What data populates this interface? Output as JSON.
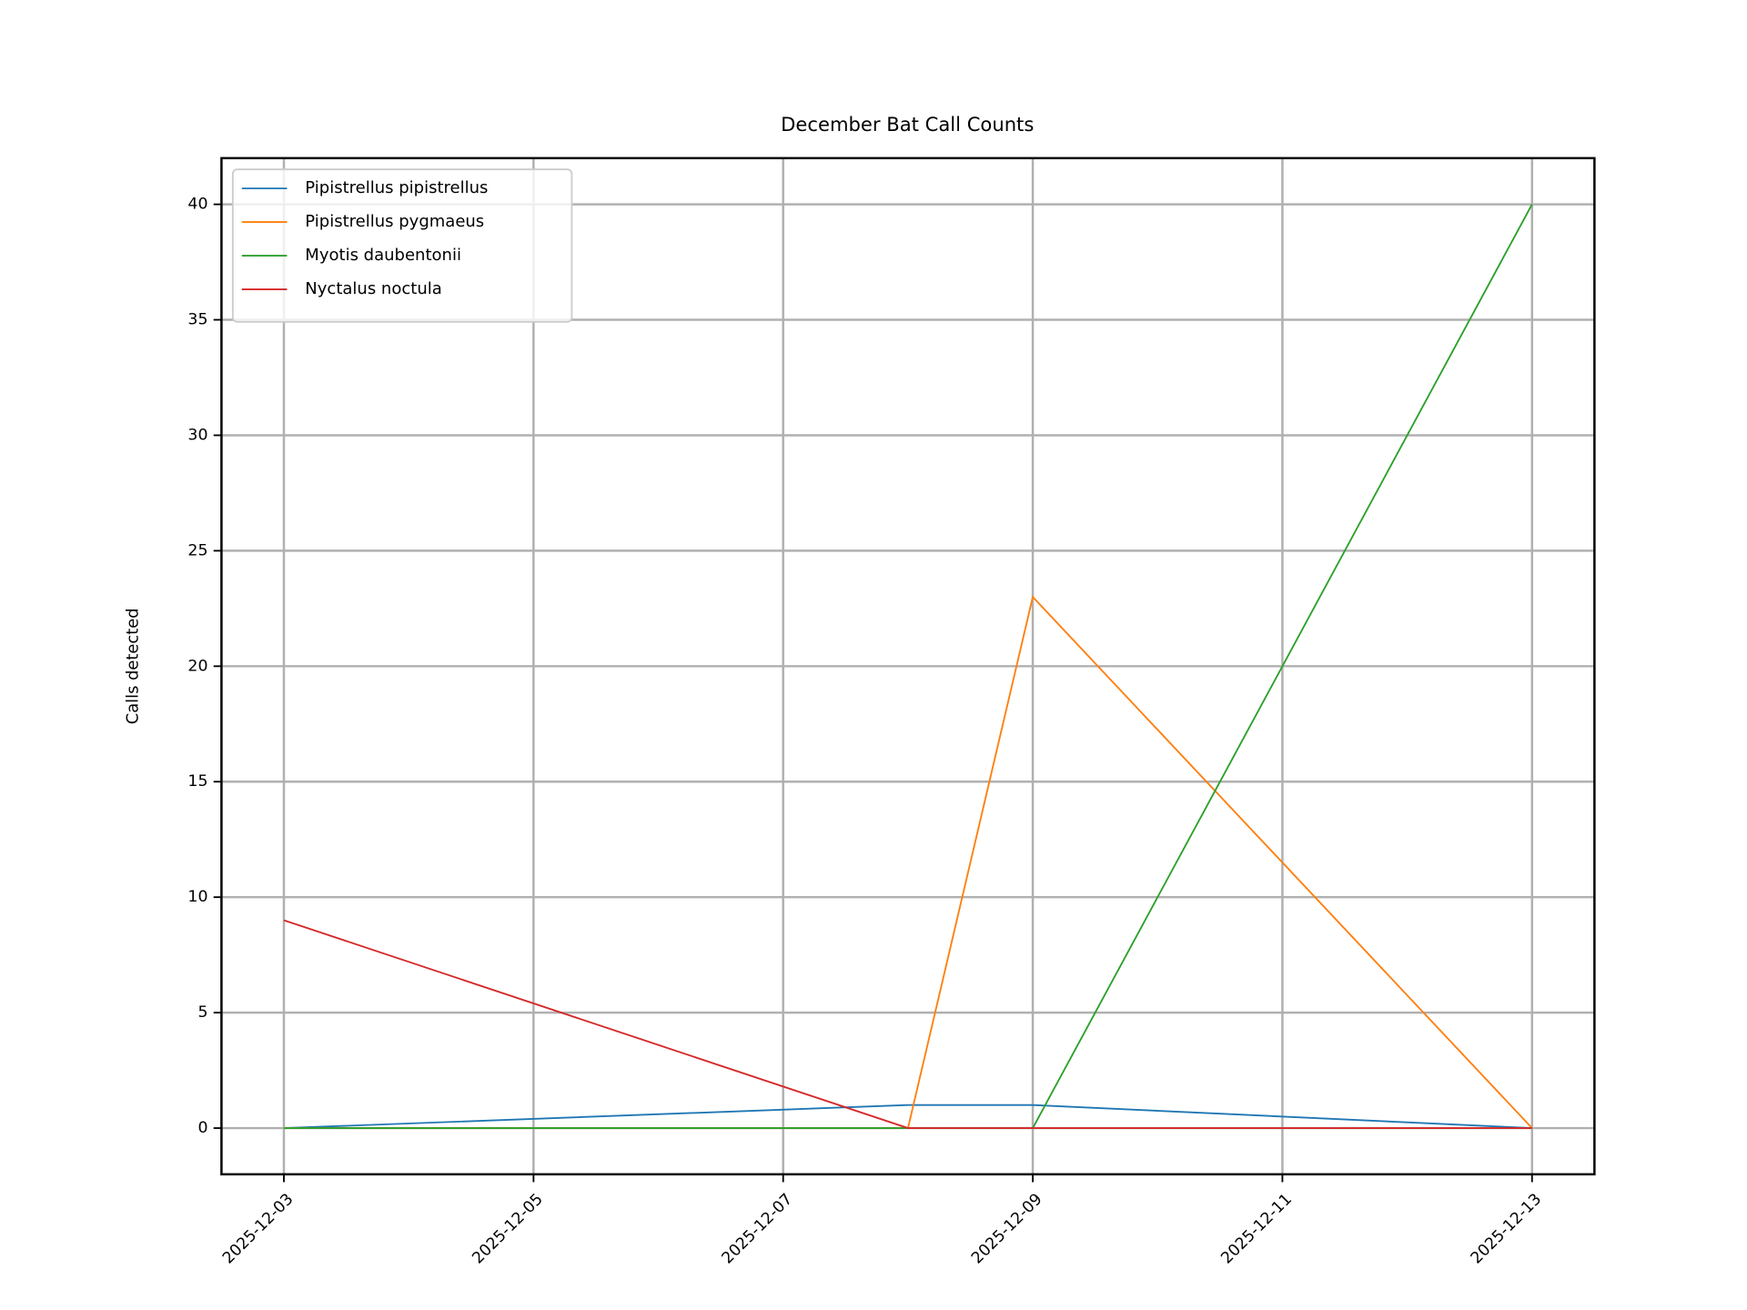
{
  "chart_data": {
    "type": "line",
    "title": "December Bat Call Counts",
    "ylabel": "Calls detected",
    "x": [
      "2025-12-03",
      "2025-12-08",
      "2025-12-09",
      "2025-12-13"
    ],
    "series": [
      {
        "name": "Pipistrellus pipistrellus",
        "color": "#1f77b4",
        "values": [
          0,
          1,
          1,
          0
        ]
      },
      {
        "name": "Pipistrellus pygmaeus",
        "color": "#ff7f0e",
        "values": [
          0,
          0,
          23,
          0
        ]
      },
      {
        "name": "Myotis daubentonii",
        "color": "#2ca02c",
        "values": [
          0,
          0,
          0,
          40
        ]
      },
      {
        "name": "Nyctalus noctula",
        "color": "#d62728",
        "values": [
          9,
          0,
          0,
          0
        ]
      }
    ],
    "xlim": [
      "2025-12-02T12:00",
      "2025-12-13T12:00"
    ],
    "xticks": [
      "2025-12-03",
      "2025-12-05",
      "2025-12-07",
      "2025-12-09",
      "2025-12-11",
      "2025-12-13"
    ],
    "ylim": [
      -2,
      42
    ],
    "yticks": [
      0,
      5,
      10,
      15,
      20,
      25,
      30,
      35,
      40
    ],
    "grid": true,
    "legend": "upper-left"
  }
}
